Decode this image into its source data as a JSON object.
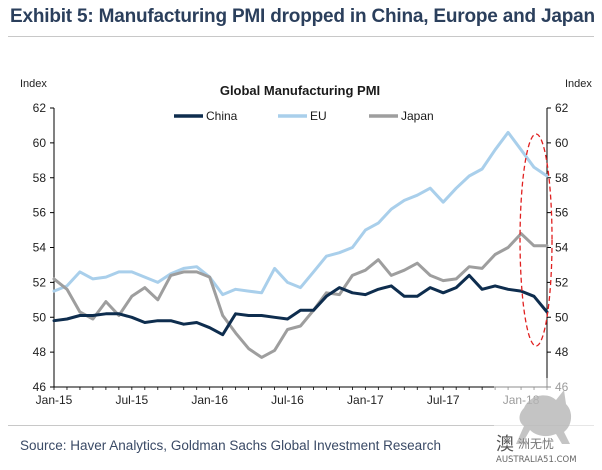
{
  "exhibit_title": "Exhibit 5: Manufacturing PMI dropped in China, Europe and Japan",
  "source": "Source: Haver Analytics, Goldman Sachs Global Investment Research",
  "watermark": {
    "glyph": "澳",
    "name": "洲无忧",
    "url": "AUSTRALIA51.COM"
  },
  "colors": {
    "China": "#0e2d4e",
    "EU": "#a9cfeb",
    "Japan": "#9e9e9e",
    "highlight": "#e02020"
  },
  "chart_data": {
    "type": "line",
    "title": "Global Manufacturing PMI",
    "ylabel_left": "Index",
    "ylabel_right": "Index",
    "ylim": [
      46,
      62
    ],
    "yticks": [
      46,
      48,
      50,
      52,
      54,
      56,
      58,
      60,
      62
    ],
    "x": [
      "Jan-15",
      "Feb-15",
      "Mar-15",
      "Apr-15",
      "May-15",
      "Jun-15",
      "Jul-15",
      "Aug-15",
      "Sep-15",
      "Oct-15",
      "Nov-15",
      "Dec-15",
      "Jan-16",
      "Feb-16",
      "Mar-16",
      "Apr-16",
      "May-16",
      "Jun-16",
      "Jul-16",
      "Aug-16",
      "Sep-16",
      "Oct-16",
      "Nov-16",
      "Dec-16",
      "Jan-17",
      "Feb-17",
      "Mar-17",
      "Apr-17",
      "May-17",
      "Jun-17",
      "Jul-17",
      "Aug-17",
      "Sep-17",
      "Oct-17",
      "Nov-17",
      "Dec-17",
      "Jan-18",
      "Feb-18",
      "Mar-18"
    ],
    "xticks": [
      "Jan-15",
      "Jul-15",
      "Jan-16",
      "Jul-16",
      "Jan-17",
      "Jul-17",
      "Jan-18"
    ],
    "grid": false,
    "legend": "top-center",
    "annotation": "red dashed ellipse around latest readings",
    "series": [
      {
        "name": "China",
        "values": [
          49.8,
          49.9,
          50.1,
          50.1,
          50.2,
          50.2,
          50.0,
          49.7,
          49.8,
          49.8,
          49.6,
          49.7,
          49.4,
          49.0,
          50.2,
          50.1,
          50.1,
          50.0,
          49.9,
          50.4,
          50.4,
          51.2,
          51.7,
          51.4,
          51.3,
          51.6,
          51.8,
          51.2,
          51.2,
          51.7,
          51.4,
          51.7,
          52.4,
          51.6,
          51.8,
          51.6,
          51.5,
          51.2,
          50.3
        ]
      },
      {
        "name": "EU",
        "values": [
          51.5,
          51.8,
          52.6,
          52.2,
          52.3,
          52.6,
          52.6,
          52.3,
          52.0,
          52.5,
          52.8,
          52.9,
          52.3,
          51.3,
          51.6,
          51.5,
          51.4,
          52.8,
          52.0,
          51.7,
          52.6,
          53.5,
          53.7,
          54.0,
          55.0,
          55.4,
          56.2,
          56.7,
          57.0,
          57.4,
          56.6,
          57.4,
          58.1,
          58.5,
          59.6,
          60.6,
          59.6,
          58.6,
          58.1
        ]
      },
      {
        "name": "Japan",
        "values": [
          52.2,
          51.6,
          50.3,
          49.9,
          50.9,
          50.1,
          51.2,
          51.7,
          51.0,
          52.4,
          52.6,
          52.6,
          52.3,
          50.1,
          49.1,
          48.2,
          47.7,
          48.1,
          49.3,
          49.5,
          50.4,
          51.4,
          51.3,
          52.4,
          52.7,
          53.3,
          52.4,
          52.7,
          53.1,
          52.4,
          52.1,
          52.2,
          52.9,
          52.8,
          53.6,
          54.0,
          54.8,
          54.1,
          54.1
        ]
      }
    ]
  }
}
